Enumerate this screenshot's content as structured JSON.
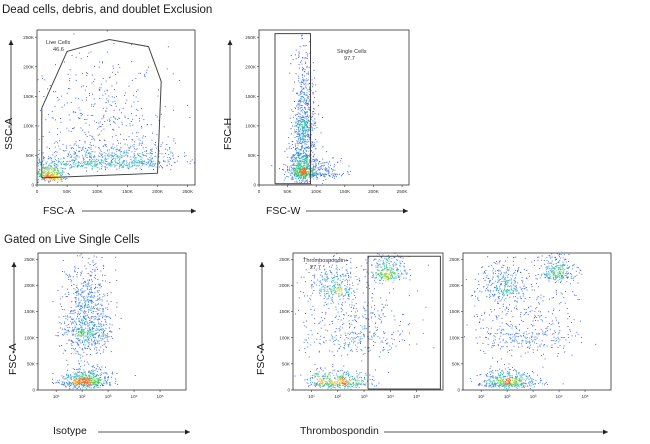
{
  "sections": [
    {
      "title": "Dead cells, debris, and doublet Exclusion"
    },
    {
      "title": "Gated on Live Single Cells"
    }
  ],
  "chart_data": [
    {
      "type": "scatter",
      "xlabel": "FSC-A",
      "ylabel": "SSC-A",
      "xticks": [
        "0",
        "50K",
        "100K",
        "150K",
        "200K",
        "250K"
      ],
      "yticks": [
        "0",
        "50K",
        "100K",
        "150K",
        "200K",
        "250K"
      ],
      "xlim": [
        0,
        262144
      ],
      "ylim": [
        0,
        262144
      ],
      "populations": [
        {
          "center": [
            18000,
            16000
          ],
          "spread": [
            14000,
            12000
          ],
          "weight": 0.25
        },
        {
          "center": [
            85000,
            40000
          ],
          "spread": [
            50000,
            18000
          ],
          "weight": 0.35
        },
        {
          "center": [
            170000,
            42000
          ],
          "spread": [
            35000,
            18000
          ],
          "weight": 0.2
        },
        {
          "center": [
            100000,
            120000
          ],
          "spread": [
            60000,
            60000
          ],
          "weight": 0.2
        }
      ],
      "gates": [
        {
          "label": "Live Cells",
          "value": "46.6",
          "polygon": [
            [
              8000,
              12000
            ],
            [
              8000,
              130000
            ],
            [
              50000,
              226000
            ],
            [
              120000,
              246000
            ],
            [
              185000,
              234000
            ],
            [
              206000,
              175000
            ],
            [
              200000,
              20000
            ],
            [
              8000,
              12000
            ]
          ]
        }
      ]
    },
    {
      "type": "scatter",
      "xlabel": "FSC-W",
      "ylabel": "FSC-H",
      "xticks": [
        "0",
        "50K",
        "100K",
        "150K",
        "200K",
        "250K"
      ],
      "yticks": [
        "0",
        "50K",
        "100K",
        "150K",
        "200K",
        "250K"
      ],
      "xlim": [
        0,
        262144
      ],
      "ylim": [
        0,
        262144
      ],
      "populations": [
        {
          "center": [
            75000,
            30000
          ],
          "spread": [
            11000,
            30000
          ],
          "weight": 0.45
        },
        {
          "center": [
            78000,
            110000
          ],
          "spread": [
            9000,
            60000
          ],
          "weight": 0.35
        },
        {
          "center": [
            95000,
            20000
          ],
          "spread": [
            25000,
            15000
          ],
          "weight": 0.2
        }
      ],
      "gates": [
        {
          "label": "Single Cells",
          "value": "97.7",
          "polygon": [
            [
              28000,
              2000
            ],
            [
              28000,
              256000
            ],
            [
              90000,
              256000
            ],
            [
              90000,
              2000
            ],
            [
              28000,
              2000
            ]
          ]
        }
      ]
    },
    {
      "type": "scatter",
      "xlabel": "Isotype",
      "ylabel": "FSC-A",
      "xscale": "log",
      "xticks": [
        "10¹",
        "10²",
        "10³",
        "10⁴",
        "10⁵"
      ],
      "yticks": [
        "0",
        "50K",
        "100K",
        "150K",
        "200K",
        "250K"
      ],
      "xlim": [
        0.3,
        6
      ],
      "ylim": [
        0,
        262144
      ],
      "populations": [
        {
          "center": [
            2.1,
            16000
          ],
          "spread": [
            0.45,
            14000
          ],
          "weight": 0.4
        },
        {
          "center": [
            2.2,
            120000
          ],
          "spread": [
            0.45,
            65000
          ],
          "weight": 0.6
        }
      ],
      "gates": []
    },
    {
      "type": "scatter",
      "xlabel": "Thrombospondin",
      "ylabel": "FSC-A",
      "xscale": "log",
      "xticks": [
        "10¹",
        "10²",
        "10³",
        "10⁴",
        "10⁵"
      ],
      "yticks": [
        "0",
        "50K",
        "100K",
        "150K",
        "200K",
        "250K"
      ],
      "xlim": [
        0.3,
        6
      ],
      "ylim": [
        0,
        262144
      ],
      "populations": [
        {
          "center": [
            2.0,
            14000
          ],
          "spread": [
            0.6,
            12000
          ],
          "weight": 0.3
        },
        {
          "center": [
            1.8,
            195000
          ],
          "spread": [
            0.45,
            30000
          ],
          "weight": 0.2
        },
        {
          "center": [
            3.9,
            225000
          ],
          "spread": [
            0.35,
            22000
          ],
          "weight": 0.2
        },
        {
          "center": [
            2.6,
            110000
          ],
          "spread": [
            1.0,
            60000
          ],
          "weight": 0.3
        }
      ],
      "gates": [
        {
          "label": "Thrombospondin+",
          "value": "27.7",
          "polygon": [
            [
              3.15,
              2000
            ],
            [
              3.15,
              256000
            ],
            [
              5.9,
              256000
            ],
            [
              5.9,
              2000
            ],
            [
              3.15,
              2000
            ]
          ]
        }
      ]
    },
    {
      "type": "scatter",
      "xlabel": "",
      "ylabel": "",
      "xscale": "log",
      "xticks": [
        "10¹",
        "10²",
        "10³",
        "10⁴",
        "10⁵"
      ],
      "yticks": [
        "0",
        "50K",
        "100K",
        "150K",
        "200K",
        "250K"
      ],
      "xlim": [
        0.3,
        6
      ],
      "ylim": [
        0,
        262144
      ],
      "populations": [
        {
          "center": [
            2.0,
            14000
          ],
          "spread": [
            0.6,
            12000
          ],
          "weight": 0.3
        },
        {
          "center": [
            1.8,
            195000
          ],
          "spread": [
            0.45,
            30000
          ],
          "weight": 0.2
        },
        {
          "center": [
            3.9,
            225000
          ],
          "spread": [
            0.35,
            22000
          ],
          "weight": 0.2
        },
        {
          "center": [
            2.6,
            110000
          ],
          "spread": [
            1.0,
            60000
          ],
          "weight": 0.3
        }
      ],
      "gates": []
    }
  ]
}
